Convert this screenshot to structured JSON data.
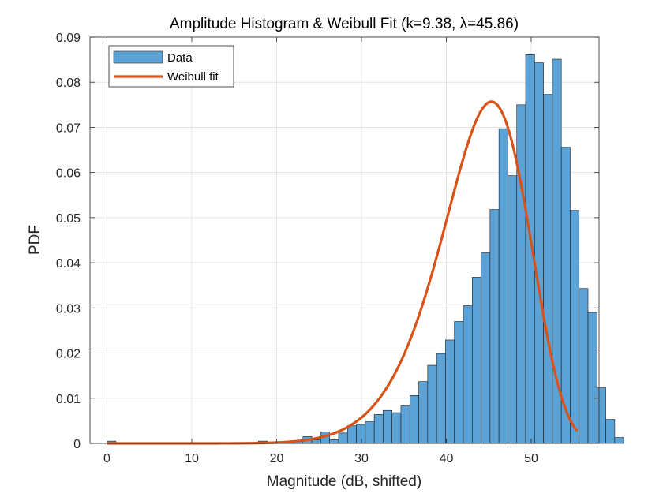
{
  "chart_data": {
    "type": "bar",
    "title": "Amplitude Histogram & Weibull Fit  (k=9.38, λ=45.86)",
    "xlabel": "Magnitude (dB, shifted)",
    "ylabel": "PDF",
    "xlim": [
      -2,
      58
    ],
    "ylim": [
      0,
      0.09
    ],
    "xticks": [
      0,
      10,
      20,
      30,
      40,
      50
    ],
    "yticks": [
      0,
      0.01,
      0.02,
      0.03,
      0.04,
      0.05,
      0.06,
      0.07,
      0.08,
      0.09
    ],
    "xtick_labels": [
      "0",
      "10",
      "20",
      "30",
      "40",
      "50"
    ],
    "ytick_labels": [
      "0",
      "0.01",
      "0.02",
      "0.03",
      "0.04",
      "0.05",
      "0.06",
      "0.07",
      "0.08",
      "0.09"
    ],
    "grid": true,
    "legend_position": "top-left",
    "bin_width": 1.05,
    "bin_start": 0,
    "bin_values": [
      0.0005,
      0,
      0,
      0,
      0,
      0,
      0,
      0,
      0,
      0,
      0,
      0,
      0,
      0,
      0,
      0,
      0,
      0.0005,
      0,
      0.0003,
      0.0005,
      0.0005,
      0.0015,
      0.0008,
      0.0025,
      0.0008,
      0.0023,
      0.0039,
      0.0042,
      0.0048,
      0.0064,
      0.0073,
      0.0068,
      0.0083,
      0.0106,
      0.0137,
      0.0173,
      0.0199,
      0.0229,
      0.027,
      0.0305,
      0.0368,
      0.0422,
      0.0518,
      0.0697,
      0.0593,
      0.075,
      0.0861,
      0.0843,
      0.0773,
      0.0851,
      0.0656,
      0.0516,
      0.0343,
      0.029,
      0.0123,
      0.0053,
      0.0013
    ],
    "series": [
      {
        "name": "Data",
        "kind": "histogram",
        "color": "#5ba3d6"
      },
      {
        "name": "Weibull fit",
        "kind": "line",
        "color": "#d95319",
        "k": 9.38,
        "lambda": 45.86,
        "x_range": [
          0,
          55.4
        ]
      }
    ]
  }
}
